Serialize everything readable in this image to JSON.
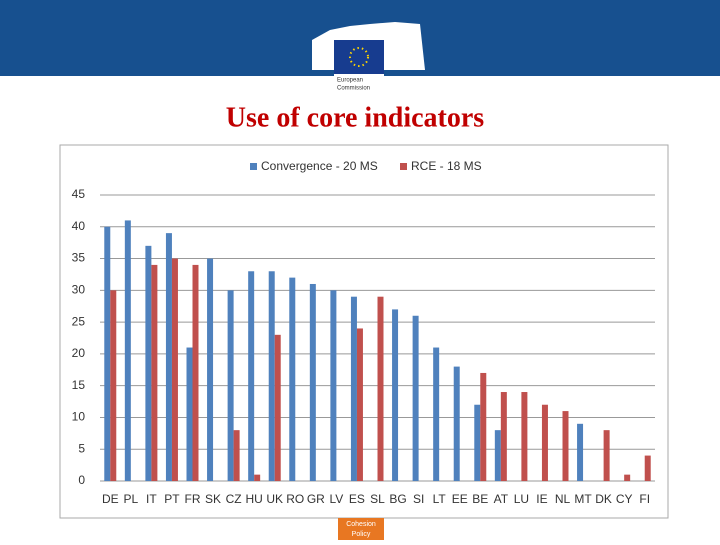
{
  "header": {
    "logo_lines": [
      "European",
      "Commission"
    ]
  },
  "footer": {
    "lines": [
      "Cohesion",
      "Policy"
    ]
  },
  "chart_data": {
    "type": "bar",
    "title": "Use of core indicators",
    "categories": [
      "DE",
      "PL",
      "IT",
      "PT",
      "FR",
      "SK",
      "CZ",
      "HU",
      "UK",
      "RO",
      "GR",
      "LV",
      "ES",
      "SL",
      "BG",
      "SI",
      "LT",
      "EE",
      "BE",
      "AT",
      "LU",
      "IE",
      "NL",
      "MT",
      "DK",
      "CY",
      "FI"
    ],
    "series": [
      {
        "name": "Convergence - 20 MS",
        "color": "#4f81bd",
        "values": [
          40,
          41,
          37,
          39,
          21,
          35,
          30,
          33,
          33,
          32,
          31,
          30,
          29,
          null,
          27,
          26,
          21,
          18,
          12,
          8,
          null,
          null,
          null,
          9,
          null,
          null,
          null
        ]
      },
      {
        "name": "RCE - 18 MS",
        "color": "#c0504d",
        "values": [
          30,
          null,
          34,
          35,
          34,
          null,
          8,
          1,
          23,
          null,
          null,
          null,
          24,
          29,
          null,
          null,
          null,
          null,
          17,
          14,
          14,
          12,
          11,
          null,
          8,
          1,
          4
        ]
      }
    ],
    "ylim": [
      0,
      45
    ],
    "yticks": [
      0,
      5,
      10,
      15,
      20,
      25,
      30,
      35,
      40,
      45
    ],
    "grid": true,
    "legend": "top"
  }
}
